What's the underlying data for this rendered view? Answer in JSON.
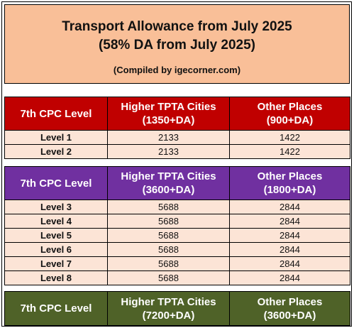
{
  "title": {
    "line1": "Transport Allowance from July 2025",
    "line2": "(58% DA from July 2025)",
    "note": "(Compiled by igecorner.com)"
  },
  "colors": {
    "header_bg": "#f9bf98",
    "red": "#c00000",
    "purple": "#7030a0",
    "green": "#4f6228",
    "row_bg": "#fce4d6"
  },
  "sections": [
    {
      "header": {
        "level": "7th CPC Level",
        "higher": "Higher TPTA Cities",
        "higher_rate": "(1350+DA)",
        "other": "Other Places",
        "other_rate": "(900+DA)"
      },
      "rows": [
        {
          "level": "Level 1",
          "higher": "2133",
          "other": "1422"
        },
        {
          "level": "Level 2",
          "higher": "2133",
          "other": "1422"
        }
      ]
    },
    {
      "header": {
        "level": "7th CPC Level",
        "higher": "Higher TPTA Cities",
        "higher_rate": "(3600+DA)",
        "other": "Other Places",
        "other_rate": "(1800+DA)"
      },
      "rows": [
        {
          "level": "Level 3",
          "higher": "5688",
          "other": "2844"
        },
        {
          "level": "Level 4",
          "higher": "5688",
          "other": "2844"
        },
        {
          "level": "Level 5",
          "higher": "5688",
          "other": "2844"
        },
        {
          "level": "Level 6",
          "higher": "5688",
          "other": "2844"
        },
        {
          "level": "Level 7",
          "higher": "5688",
          "other": "2844"
        },
        {
          "level": "Level 8",
          "higher": "5688",
          "other": "2844"
        }
      ]
    },
    {
      "header": {
        "level": "7th CPC Level",
        "higher": "Higher TPTA Cities",
        "higher_rate": "(7200+DA)",
        "other": "Other Places",
        "other_rate": "(3600+DA)"
      },
      "rows": []
    }
  ]
}
